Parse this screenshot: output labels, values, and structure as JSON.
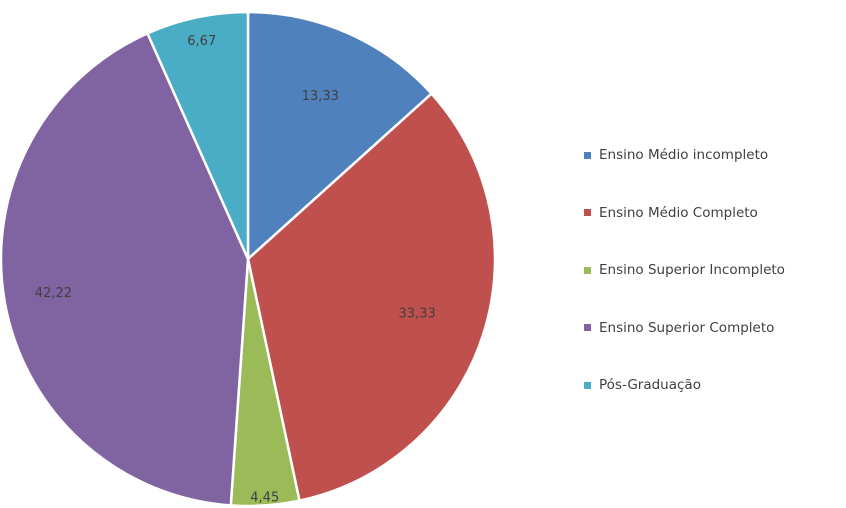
{
  "chart_data": {
    "type": "pie",
    "title": "",
    "categories": [
      "Ensino Médio incompleto",
      "Ensino Médio Completo",
      "Ensino Superior Incompleto",
      "Ensino Superior Completo",
      "Pós-Graduação"
    ],
    "values": [
      13.33,
      33.33,
      4.45,
      42.22,
      6.67
    ],
    "data_labels": [
      "13,33",
      "33,33",
      "4,45",
      "42,22",
      "6,67"
    ],
    "colors": [
      "#4f81bd",
      "#c0504d",
      "#9bbb59",
      "#8064a2",
      "#4bacc6"
    ],
    "start": "12 o'clock, clockwise",
    "legend_position": "right"
  }
}
